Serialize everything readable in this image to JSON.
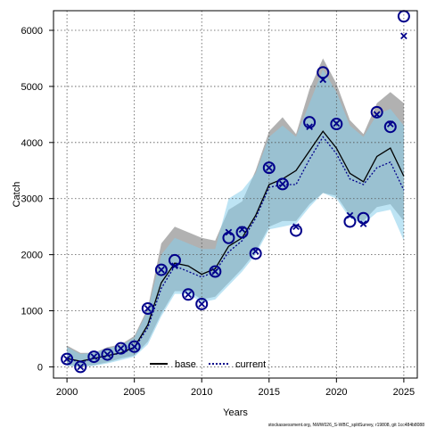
{
  "chart_data": {
    "type": "line",
    "title": "",
    "xlabel": "Years",
    "ylabel": "Catch",
    "xlim": [
      1999,
      2026
    ],
    "ylim": [
      -200,
      6350
    ],
    "xticks": [
      2000,
      2005,
      2010,
      2015,
      2020,
      2025
    ],
    "yticks": [
      0,
      1000,
      2000,
      3000,
      4000,
      5000,
      6000
    ],
    "grid": true,
    "legend_position": "bottom-center",
    "x": [
      2000,
      2001,
      2002,
      2003,
      2004,
      2005,
      2006,
      2007,
      2008,
      2009,
      2010,
      2011,
      2012,
      2013,
      2014,
      2015,
      2016,
      2017,
      2018,
      2019,
      2020,
      2021,
      2022,
      2023,
      2024,
      2025
    ],
    "series": [
      {
        "name": "base",
        "color": "#000000",
        "line_style": "solid",
        "band_color": "#a9a9a9",
        "values": [
          150,
          100,
          150,
          200,
          250,
          350,
          750,
          1500,
          1850,
          1800,
          1650,
          1750,
          2150,
          2300,
          2700,
          3250,
          3350,
          3500,
          3850,
          4200,
          3900,
          3450,
          3300,
          3750,
          3900,
          3400
        ],
        "lower": [
          30,
          0,
          30,
          80,
          150,
          200,
          450,
          950,
          1350,
          1350,
          1200,
          1250,
          1500,
          1750,
          2050,
          2500,
          2600,
          2600,
          2900,
          3100,
          3050,
          2700,
          2600,
          2850,
          2900,
          2600
        ],
        "upper": [
          380,
          250,
          250,
          350,
          400,
          550,
          1050,
          2200,
          2500,
          2400,
          2300,
          2250,
          2800,
          2950,
          3500,
          4200,
          4450,
          4150,
          4950,
          5500,
          5050,
          4400,
          4150,
          4700,
          4900,
          4700
        ]
      },
      {
        "name": "current",
        "color": "#00008b",
        "line_style": "dotted",
        "band_color": "#87ceeb",
        "values": [
          150,
          80,
          150,
          200,
          240,
          330,
          700,
          1400,
          1800,
          1700,
          1600,
          1700,
          2050,
          2250,
          2650,
          3200,
          3250,
          3250,
          3700,
          4100,
          3800,
          3350,
          3250,
          3550,
          3650,
          3150
        ],
        "lower": [
          20,
          0,
          20,
          60,
          120,
          180,
          400,
          900,
          1300,
          1300,
          1150,
          1200,
          1450,
          1700,
          2000,
          2450,
          2500,
          2550,
          2850,
          3100,
          3000,
          2650,
          2550,
          2750,
          2800,
          2250
        ],
        "upper": [
          350,
          230,
          250,
          330,
          380,
          520,
          1000,
          2000,
          2300,
          2200,
          2100,
          2100,
          3000,
          3150,
          3450,
          4100,
          4300,
          4100,
          4700,
          5300,
          4900,
          4300,
          4100,
          4500,
          4600,
          4300
        ]
      }
    ],
    "observed": [
      140,
      0,
      180,
      220,
      330,
      360,
      1040,
      1730,
      1900,
      1290,
      1120,
      1700,
      2300,
      2400,
      2020,
      3550,
      3260,
      2430,
      4360,
      5250,
      4330,
      2590,
      2650,
      4540,
      4280,
      6250
    ],
    "predicted": [
      140,
      0,
      180,
      220,
      330,
      360,
      1040,
      1730,
      1800,
      1290,
      1120,
      1700,
      2400,
      2450,
      2060,
      3550,
      3260,
      2500,
      4280,
      5120,
      4340,
      2700,
      2550,
      4500,
      4330,
      5900
    ]
  },
  "footer": "stockassessment.org, NWW026_S-WBC_splitSurvey, r19808, git 1cc484b8088"
}
